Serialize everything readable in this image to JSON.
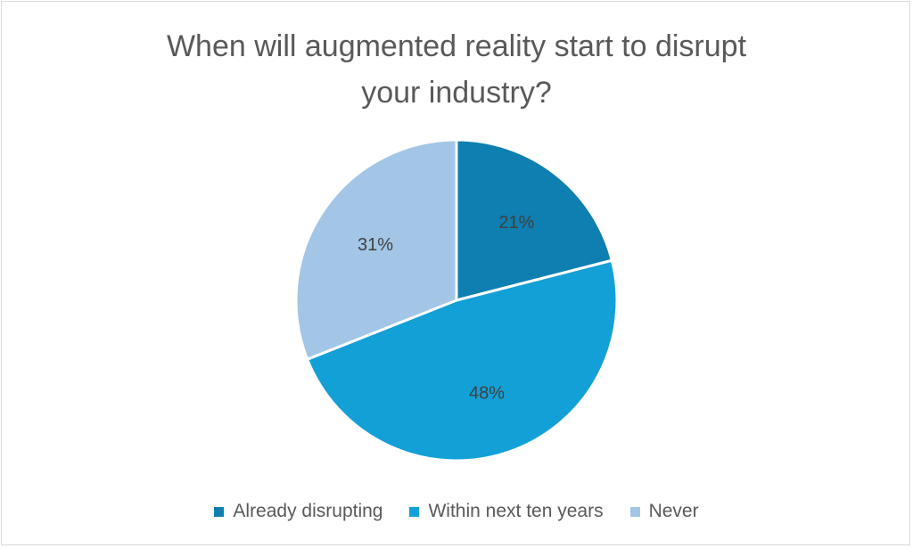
{
  "chart_data": {
    "type": "pie",
    "title": "When will augmented reality start to disrupt your industry?",
    "title_lines": [
      "When will augmented reality start to disrupt",
      "your industry?"
    ],
    "slices": [
      {
        "label": "Already disrupting",
        "value": 21,
        "display": "21%",
        "color": "#0e7fb0"
      },
      {
        "label": "Within next ten years",
        "value": 48,
        "display": "48%",
        "color": "#12a0d7"
      },
      {
        "label": "Never",
        "value": 31,
        "display": "31%",
        "color": "#a3c6e6"
      }
    ],
    "legend_position": "bottom",
    "label_color": "#404040"
  }
}
